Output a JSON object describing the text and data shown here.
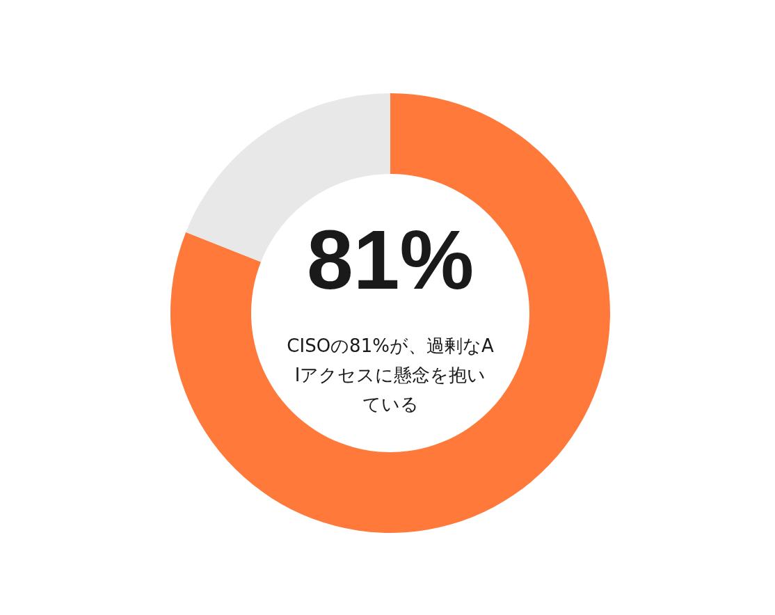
{
  "chart_data": {
    "type": "donut",
    "categories": [
      null,
      null
    ],
    "values": [
      81,
      19
    ],
    "colors": [
      "#ff7a3a",
      "#e8e8e8"
    ],
    "value_labels": [
      "81%",
      null
    ],
    "annotations": [
      "CISOの81%が、過剰なAIアクセスに懸念を抱いている"
    ],
    "legend": false
  }
}
